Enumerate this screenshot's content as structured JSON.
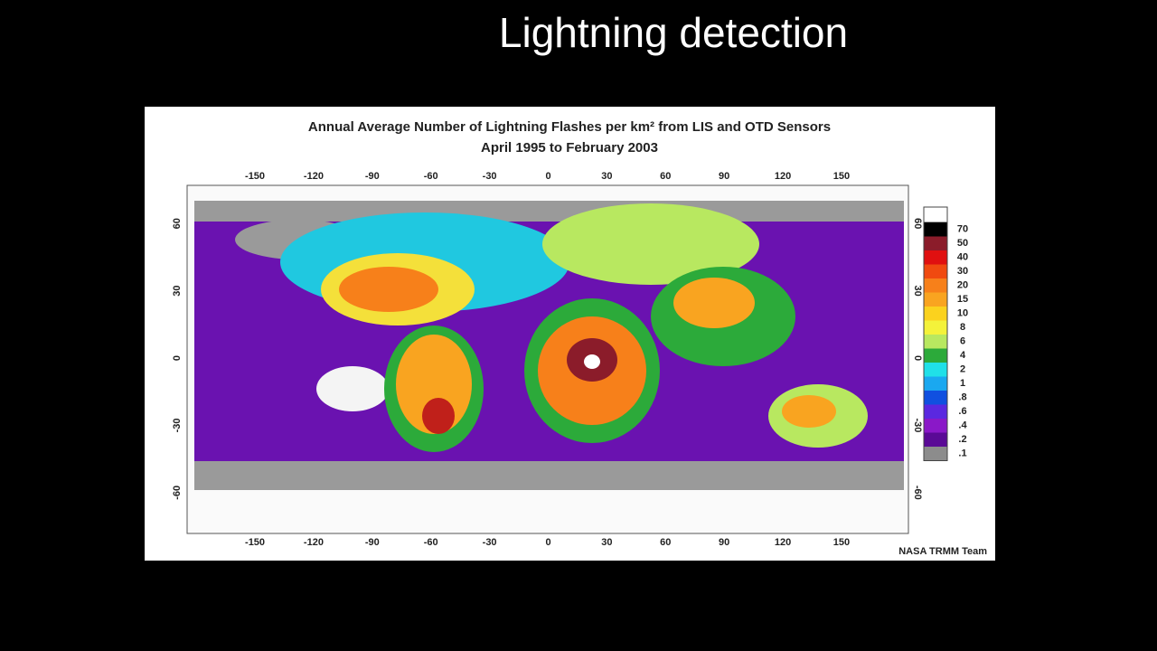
{
  "slide": {
    "title": "Lightning detection"
  },
  "map": {
    "title": "Annual Average Number of Lightning Flashes per km² from LIS and OTD Sensors",
    "subtitle": "April 1995 to February 2003",
    "top_ticks": [
      -150,
      -120,
      -90,
      -60,
      -30,
      0,
      30,
      60,
      90,
      120,
      150
    ],
    "bottom_ticks": [
      -150,
      -120,
      -90,
      -60,
      -30,
      0,
      30,
      60,
      90,
      120,
      150
    ],
    "left_ticks": [
      60,
      30,
      0,
      -30,
      -60
    ],
    "right_ticks": [
      60,
      30,
      0,
      -30,
      -60
    ],
    "legend": [
      {
        "label": "70",
        "color": "#000000"
      },
      {
        "label": "50",
        "color": "#8b1c2a"
      },
      {
        "label": "40",
        "color": "#e01010"
      },
      {
        "label": "30",
        "color": "#f04a10"
      },
      {
        "label": "20",
        "color": "#f7801a"
      },
      {
        "label": "15",
        "color": "#f9a420"
      },
      {
        "label": "10",
        "color": "#fbd21e"
      },
      {
        "label": "8",
        "color": "#f4f23a"
      },
      {
        "label": "6",
        "color": "#b8e860"
      },
      {
        "label": "4",
        "color": "#2caa3a"
      },
      {
        "label": "2",
        "color": "#20e0e8"
      },
      {
        "label": "1",
        "color": "#1aa8f0"
      },
      {
        "label": ".8",
        "color": "#1050e0"
      },
      {
        "label": ".6",
        "color": "#5a28e0"
      },
      {
        "label": ".4",
        "color": "#8a18c8"
      },
      {
        "label": ".2",
        "color": "#5a0a96"
      },
      {
        "label": ".1",
        "color": "#8c8c8c"
      }
    ],
    "credit": "NASA TRMM Team"
  }
}
